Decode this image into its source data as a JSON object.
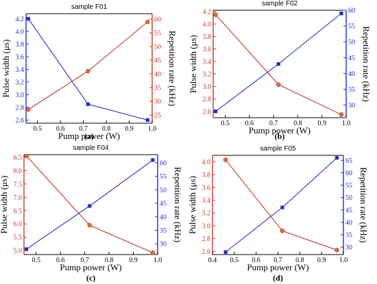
{
  "figure": {
    "colors": {
      "red": "#c0392b",
      "blue": "#1f2bd6",
      "axis": "#000000"
    }
  },
  "chart_data": [
    {
      "type": "line",
      "title": "sample F01",
      "panel_label": "(a)",
      "xlabel": "Pump power (W)",
      "ylabel_left": "Pulse width (μs)",
      "ylabel_right": "Repetition rate (kHz)",
      "xlim": [
        0.45,
        1.0
      ],
      "xticks": [
        0.5,
        0.6,
        0.7,
        0.8,
        0.9,
        1.0
      ],
      "ylim_left": [
        2.55,
        4.28
      ],
      "yticks_left": [
        2.6,
        2.8,
        3.0,
        3.2,
        3.4,
        3.6,
        3.8,
        4.0,
        4.2
      ],
      "ylim_right": [
        22,
        62
      ],
      "yticks_right": [
        25,
        30,
        35,
        40,
        45,
        50,
        55,
        60
      ],
      "x": [
        0.46,
        0.72,
        0.98
      ],
      "series": [
        {
          "axis": "left",
          "color": "#1f2bd6",
          "marker": "square",
          "values": [
            4.2,
            2.85,
            2.6
          ]
        },
        {
          "axis": "right",
          "color": "#c0392b",
          "marker": "circle",
          "values": [
            27,
            41,
            59
          ]
        }
      ]
    },
    {
      "type": "line",
      "title": "sample F02",
      "panel_label": "(b)",
      "xlabel": "Pump power (W)",
      "ylabel_left": "Pulse width (μs)",
      "ylabel_right": "Repetition rate (kHz)",
      "xlim": [
        0.45,
        1.0
      ],
      "xticks": [
        0.5,
        0.6,
        0.7,
        0.8,
        0.9,
        1.0
      ],
      "ylim_left": [
        2.5,
        4.22
      ],
      "yticks_left": [
        2.6,
        2.8,
        3.0,
        3.2,
        3.4,
        3.6,
        3.8,
        4.0,
        4.2
      ],
      "ylim_right": [
        26,
        60
      ],
      "yticks_right": [
        30,
        35,
        40,
        45,
        50,
        55,
        60
      ],
      "x": [
        0.46,
        0.72,
        0.98
      ],
      "series": [
        {
          "axis": "left",
          "color": "#c0392b",
          "marker": "circle",
          "values": [
            4.15,
            3.03,
            2.55
          ]
        },
        {
          "axis": "right",
          "color": "#1f2bd6",
          "marker": "square",
          "values": [
            28,
            43,
            59
          ]
        }
      ]
    },
    {
      "type": "line",
      "title": "sample F04",
      "panel_label": "(c)",
      "xlabel": "Pump power (W)",
      "ylabel_left": "Pulse width (μs)",
      "ylabel_right": "Repetition rate (kHz)",
      "xlim": [
        0.45,
        1.0
      ],
      "xticks": [
        0.5,
        0.6,
        0.7,
        0.8,
        0.9,
        1.0
      ],
      "ylim_left": [
        4.85,
        8.6
      ],
      "yticks_left": [
        5.0,
        5.5,
        6.0,
        6.5,
        7.0,
        7.5,
        8.0,
        8.5
      ],
      "ylim_right": [
        26,
        63
      ],
      "yticks_right": [
        30,
        35,
        40,
        45,
        50,
        55,
        60
      ],
      "x": [
        0.46,
        0.72,
        0.98
      ],
      "series": [
        {
          "axis": "left",
          "color": "#c0392b",
          "marker": "circle",
          "values": [
            8.55,
            5.95,
            4.92
          ]
        },
        {
          "axis": "right",
          "color": "#1f2bd6",
          "marker": "square",
          "values": [
            28,
            44,
            61
          ]
        }
      ]
    },
    {
      "type": "line",
      "title": "sample F05",
      "panel_label": "(d)",
      "xlabel": "Pump power (W)",
      "ylabel_left": "Pulse width (μs)",
      "ylabel_right": "Repetition rate (kHz)",
      "xlim": [
        0.4,
        1.0
      ],
      "xticks": [
        0.4,
        0.5,
        0.6,
        0.7,
        0.8,
        0.9,
        1.0
      ],
      "ylim_left": [
        2.55,
        4.1
      ],
      "yticks_left": [
        2.6,
        2.8,
        3.0,
        3.2,
        3.4,
        3.6,
        3.8,
        4.0
      ],
      "ylim_right": [
        27,
        67
      ],
      "yticks_right": [
        30,
        35,
        40,
        45,
        50,
        55,
        60,
        65
      ],
      "x": [
        0.46,
        0.72,
        0.97
      ],
      "series": [
        {
          "axis": "left",
          "color": "#c0392b",
          "marker": "circle",
          "values": [
            4.03,
            2.92,
            2.62
          ]
        },
        {
          "axis": "right",
          "color": "#1f2bd6",
          "marker": "square",
          "values": [
            28,
            46,
            66
          ]
        }
      ]
    }
  ]
}
